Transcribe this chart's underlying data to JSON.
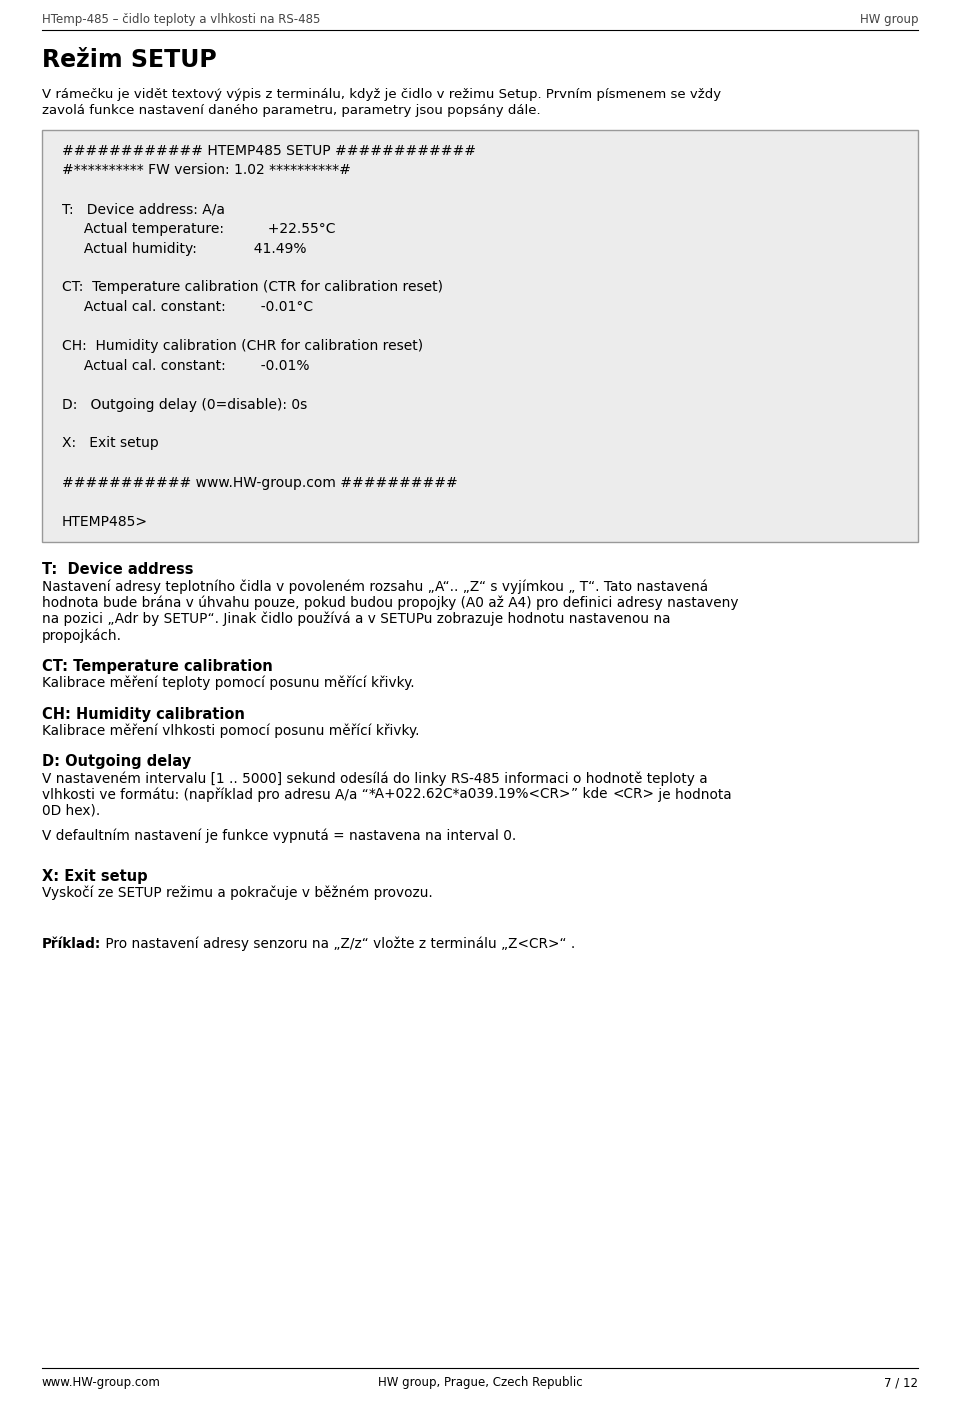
{
  "header_left": "HTemp-485 – čidlo teploty a vlhkosti na RS-485",
  "header_right": "HW group",
  "title": "Režim SETUP",
  "intro_line1": "V rámečku je vidět textový výpis z terminálu, když je čidlo v režimu Setup. Prvním písmenem se vždy",
  "intro_line2": "zavolá funkce nastavení daného parametru, parametry jsou popsány dále.",
  "code_lines": [
    "############ HTEMP485 SETUP ############",
    "#********** FW version: 1.02 **********#",
    "",
    "T:   Device address: A/a",
    "     Actual temperature:          +22.55°C",
    "     Actual humidity:             41.49%",
    "",
    "CT:  Temperature calibration (CTR for calibration reset)",
    "     Actual cal. constant:        -0.01°C",
    "",
    "CH:  Humidity calibration (CHR for calibration reset)",
    "     Actual cal. constant:        -0.01%",
    "",
    "D:   Outgoing delay (0=disable): 0s",
    "",
    "X:   Exit setup",
    "",
    "########### www.HW-group.com ##########",
    "",
    "HTEMP485>"
  ],
  "sec1_heading": "T:  Device address",
  "sec1_lines": [
    "Nastavení adresy teplotního čidla v povoleném rozsahu „A“.. „Z“ s vyjímkou „ T“. Tato nastavená",
    "hodnota bude brána v úhvahu pouze, pokud budou propojky (A0 až A4) pro definici adresy nastaveny",
    "na pozici „Adr by SETUP“. Jinak čidlo používá a v SETUPu zobrazuje hodnotu nastavenou na",
    "propojkách."
  ],
  "sec1_underline_word": "Adr by SETUP",
  "sec2_heading": "CT: Temperature calibration",
  "sec2_lines": [
    "Kalibrace měření teploty pomocí posunu měřící křivky."
  ],
  "sec3_heading": "CH: Humidity calibration",
  "sec3_lines": [
    "Kalibrace měření vlhkosti pomocí posunu měřící křivky."
  ],
  "sec4_heading": "D: Outgoing delay",
  "sec4_line1_pre": "V nastaveném intervalu [1 .. 5000] sekund odesílá do linky RS-485 informaci o hodnotě teploty a",
  "sec4_line2_pre": "vlhkosti ve formátu: (například pro adresu A/a “",
  "sec4_line2_mono": "*A+022.62C*a039.19%<CR>",
  "sec4_line2_post": "” kde ",
  "sec4_line2_mono2": "<CR>",
  "sec4_line2_end": " je hodnota",
  "sec4_line3": "0D hex).",
  "sec4_line4": "",
  "sec4_line5": "V defaultním nastavení je funkce vypnutá = nastavena na interval 0.",
  "sec5_heading": "X: Exit setup",
  "sec5_lines": [
    "Vyskočí ze SETUP režimu a pokračuje v běžném provozu."
  ],
  "example_bold": "Příklad:",
  "example_rest": " Pro nastavení adresy senzoru na „Z/z“ vložte z terminálu „Z<CR>“ .",
  "footer_left": "www.HW-group.com",
  "footer_center": "HW group, Prague, Czech Republic",
  "footer_right": "7 / 12"
}
